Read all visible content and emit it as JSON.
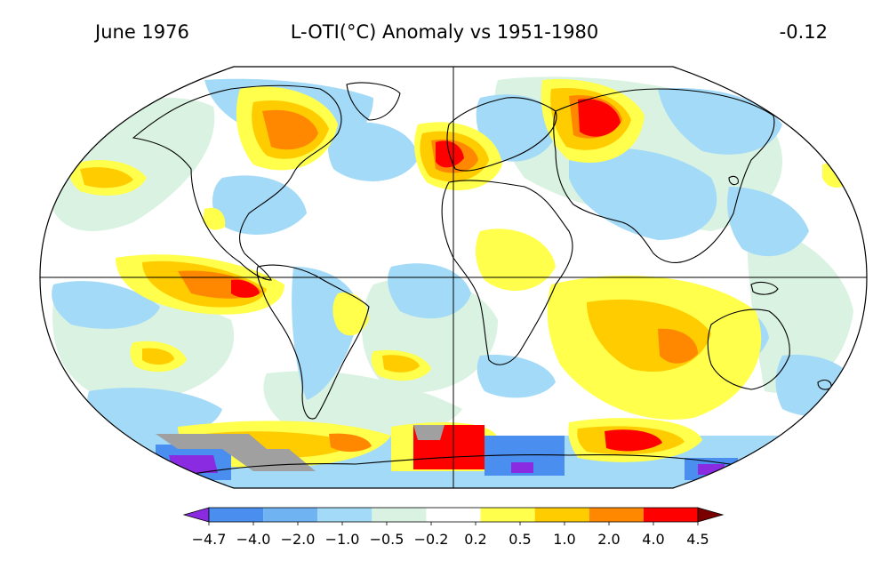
{
  "header": {
    "date": "June 1976",
    "title": "L-OTI(°C) Anomaly vs 1951-1980",
    "global_mean": "-0.12"
  },
  "colorbar": {
    "ticks": [
      "−4.7",
      "−4.0",
      "−2.0",
      "−1.0",
      "−0.5",
      "−0.2",
      "0.2",
      "0.5",
      "1.0",
      "2.0",
      "4.0",
      "4.5"
    ],
    "colors": [
      "#8a2be2",
      "#4a8ef0",
      "#6fb3f2",
      "#a3daf7",
      "#d9f2e1",
      "#ffffff",
      "#ffff4c",
      "#ffcc00",
      "#ff8800",
      "#ff0000",
      "#7a0000"
    ]
  },
  "palette": {
    "missing": "#a0a0a0"
  }
}
